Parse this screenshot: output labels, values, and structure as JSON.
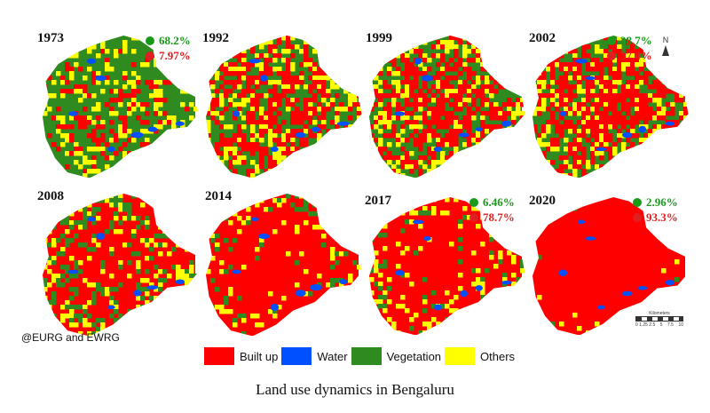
{
  "caption": "Land use dynamics in Bengaluru",
  "credit": "@EURG and EWRG",
  "colors": {
    "built_up": "#ff0000",
    "water": "#0050ff",
    "vegetation": "#2f8a1f",
    "others": "#ffff00",
    "green_text": "#1a9a1a",
    "red_text": "#e02020"
  },
  "legend": [
    {
      "label": "Built up",
      "color": "#ff0000"
    },
    {
      "label": "Water",
      "color": "#0050ff"
    },
    {
      "label": "Vegetation",
      "color": "#2f8a1f"
    },
    {
      "label": "Others",
      "color": "#ffff00"
    }
  ],
  "maps": [
    {
      "year": "1973",
      "dominant": "vegetation",
      "vegetation_pct": "68.2%",
      "built_up_pct": "7.97%"
    },
    {
      "year": "1992",
      "dominant": "mixed_veg"
    },
    {
      "year": "1999",
      "dominant": "mixed_veg"
    },
    {
      "year": "2002",
      "dominant": "mixed",
      "vegetation_pct": "38.7%",
      "built_up_pct": "37.4%"
    },
    {
      "year": "2008",
      "dominant": "mixed_red"
    },
    {
      "year": "2014",
      "dominant": "mostly_red"
    },
    {
      "year": "2017",
      "dominant": "mostly_red",
      "vegetation_pct": "6.46%",
      "built_up_pct": "78.7%"
    },
    {
      "year": "2020",
      "dominant": "red",
      "vegetation_pct": "2.96%",
      "built_up_pct": "93.3%"
    }
  ],
  "north_arrow_label": "N",
  "scale_bar": {
    "unit_label": "Kilometers",
    "ticks": [
      "0 1.25 2.5",
      "5",
      "7.5",
      "10"
    ]
  }
}
